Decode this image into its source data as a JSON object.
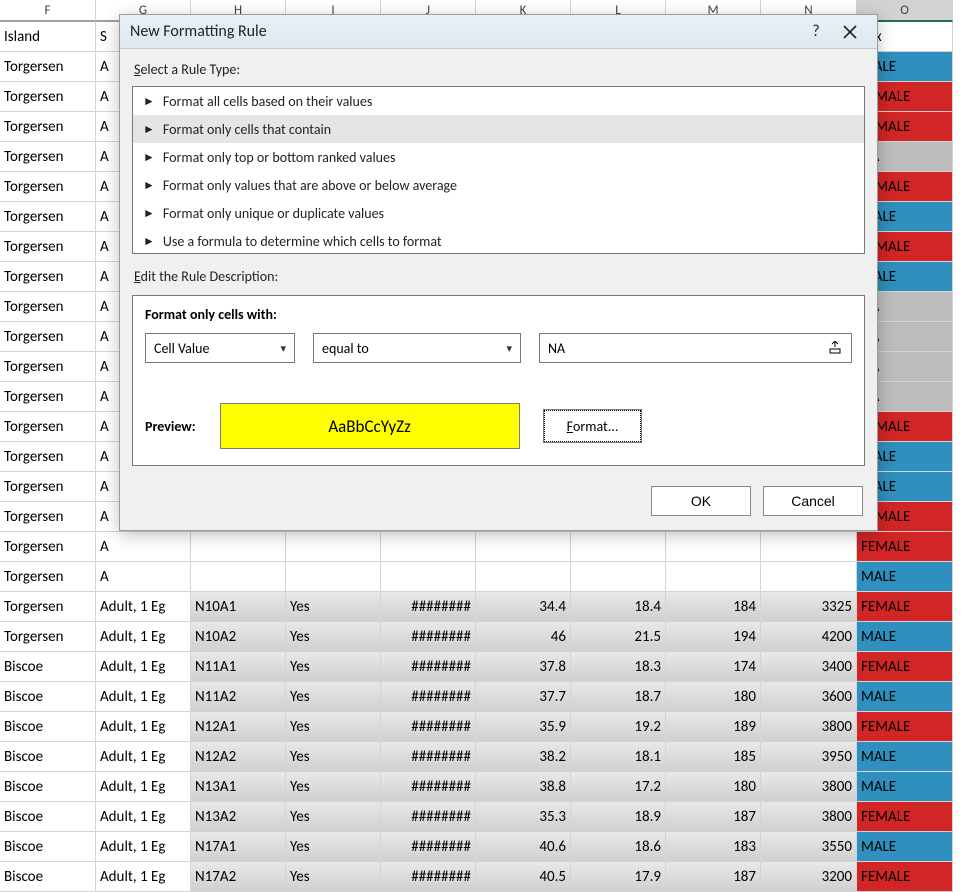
{
  "columns": [
    "F",
    "G",
    "H",
    "I",
    "J",
    "K",
    "L",
    "M",
    "N",
    "O"
  ],
  "header_row": {
    "F": "Island",
    "G": "S",
    "O": "Sex"
  },
  "selected_column": "O",
  "truncated_stage": "Adult, 1 Eg",
  "truncated_torgersen_rows": [
    {
      "F": "Torgersen",
      "G": "A",
      "sex": "MALE"
    },
    {
      "F": "Torgersen",
      "G": "A",
      "sex": "FEMALE"
    },
    {
      "F": "Torgersen",
      "G": "A",
      "sex": "FEMALE"
    },
    {
      "F": "Torgersen",
      "G": "A",
      "sex": "NA"
    },
    {
      "F": "Torgersen",
      "G": "A",
      "sex": "FEMALE"
    },
    {
      "F": "Torgersen",
      "G": "A",
      "sex": "MALE"
    },
    {
      "F": "Torgersen",
      "G": "A",
      "sex": "FEMALE"
    },
    {
      "F": "Torgersen",
      "G": "A",
      "sex": "MALE"
    },
    {
      "F": "Torgersen",
      "G": "A",
      "sex": "NA"
    },
    {
      "F": "Torgersen",
      "G": "A",
      "sex": "NA"
    },
    {
      "F": "Torgersen",
      "G": "A",
      "sex": "NA"
    },
    {
      "F": "Torgersen",
      "G": "A",
      "sex": "NA"
    },
    {
      "F": "Torgersen",
      "G": "A",
      "sex": "FEMALE"
    },
    {
      "F": "Torgersen",
      "G": "A",
      "sex": "MALE"
    },
    {
      "F": "Torgersen",
      "G": "A",
      "sex": "MALE"
    },
    {
      "F": "Torgersen",
      "G": "A",
      "sex": "FEMALE"
    },
    {
      "F": "Torgersen",
      "G": "A",
      "sex": "FEMALE"
    },
    {
      "F": "Torgersen",
      "G": "A",
      "sex": "MALE"
    }
  ],
  "full_rows": [
    {
      "F": "Torgersen",
      "G": "Adult, 1 Eg",
      "H": "N10A1",
      "I": "Yes",
      "J": "########",
      "K": 34.4,
      "L": 18.4,
      "M": 184,
      "N": 3325,
      "O": "FEMALE"
    },
    {
      "F": "Torgersen",
      "G": "Adult, 1 Eg",
      "H": "N10A2",
      "I": "Yes",
      "J": "########",
      "K": 46,
      "L": 21.5,
      "M": 194,
      "N": 4200,
      "O": "MALE"
    },
    {
      "F": "Biscoe",
      "G": "Adult, 1 Eg",
      "H": "N11A1",
      "I": "Yes",
      "J": "########",
      "K": 37.8,
      "L": 18.3,
      "M": 174,
      "N": 3400,
      "O": "FEMALE"
    },
    {
      "F": "Biscoe",
      "G": "Adult, 1 Eg",
      "H": "N11A2",
      "I": "Yes",
      "J": "########",
      "K": 37.7,
      "L": 18.7,
      "M": 180,
      "N": 3600,
      "O": "MALE"
    },
    {
      "F": "Biscoe",
      "G": "Adult, 1 Eg",
      "H": "N12A1",
      "I": "Yes",
      "J": "########",
      "K": 35.9,
      "L": 19.2,
      "M": 189,
      "N": 3800,
      "O": "FEMALE"
    },
    {
      "F": "Biscoe",
      "G": "Adult, 1 Eg",
      "H": "N12A2",
      "I": "Yes",
      "J": "########",
      "K": 38.2,
      "L": 18.1,
      "M": 185,
      "N": 3950,
      "O": "MALE"
    },
    {
      "F": "Biscoe",
      "G": "Adult, 1 Eg",
      "H": "N13A1",
      "I": "Yes",
      "J": "########",
      "K": 38.8,
      "L": 17.2,
      "M": 180,
      "N": 3800,
      "O": "MALE"
    },
    {
      "F": "Biscoe",
      "G": "Adult, 1 Eg",
      "H": "N13A2",
      "I": "Yes",
      "J": "########",
      "K": 35.3,
      "L": 18.9,
      "M": 187,
      "N": 3800,
      "O": "FEMALE"
    },
    {
      "F": "Biscoe",
      "G": "Adult, 1 Eg",
      "H": "N17A1",
      "I": "Yes",
      "J": "########",
      "K": 40.6,
      "L": 18.6,
      "M": 183,
      "N": 3550,
      "O": "MALE"
    },
    {
      "F": "Biscoe",
      "G": "Adult, 1 Eg",
      "H": "N17A2",
      "I": "Yes",
      "J": "########",
      "K": 40.5,
      "L": 17.9,
      "M": 187,
      "N": 3200,
      "O": "FEMALE"
    }
  ],
  "sex_colors": {
    "MALE": "#2f8fbe",
    "FEMALE": "#d22525",
    "NA": "#bdbdbd"
  },
  "dialog": {
    "title": "New Formatting Rule",
    "help": "?",
    "select_label": "Select a Rule Type:",
    "rule_types": [
      "Format all cells based on their values",
      "Format only cells that contain",
      "Format only top or bottom ranked values",
      "Format only values that are above or below average",
      "Format only unique or duplicate values",
      "Use a formula to determine which cells to format"
    ],
    "selected_rule_index": 1,
    "edit_label": "Edit the Rule Description:",
    "format_with_label": "Format only cells with:",
    "combo1": "Cell Value",
    "combo2": "equal to",
    "value_input": "NA",
    "preview_label": "Preview:",
    "preview_sample": "AaBbCcYyZz",
    "preview_bg": "#ffff00",
    "format_button": "Format...",
    "ok": "OK",
    "cancel": "Cancel"
  }
}
